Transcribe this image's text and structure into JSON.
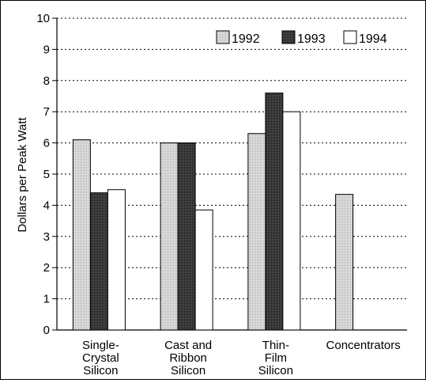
{
  "chart_data": {
    "type": "bar",
    "title": "",
    "xlabel": "",
    "ylabel": "Dollars per Peak Watt",
    "ylim": [
      0,
      10
    ],
    "yticks": [
      "0",
      "1",
      "2",
      "3",
      "4",
      "5",
      "6",
      "7",
      "8",
      "9",
      "10"
    ],
    "grid": true,
    "legend_position": "top-right",
    "categories": [
      [
        "Single-",
        "Crystal",
        "Silicon"
      ],
      [
        "Cast and",
        "Ribbon",
        "Silicon"
      ],
      [
        "Thin-",
        "Film",
        "Silicon"
      ],
      [
        "Concentrators"
      ]
    ],
    "series": [
      {
        "name": "1992",
        "pattern": "dotted",
        "values": [
          6.1,
          6.0,
          6.3,
          4.35
        ]
      },
      {
        "name": "1993",
        "pattern": "dark",
        "values": [
          4.4,
          6.0,
          7.6,
          null
        ]
      },
      {
        "name": "1994",
        "pattern": "white",
        "values": [
          4.5,
          3.85,
          7.0,
          null
        ]
      }
    ]
  }
}
